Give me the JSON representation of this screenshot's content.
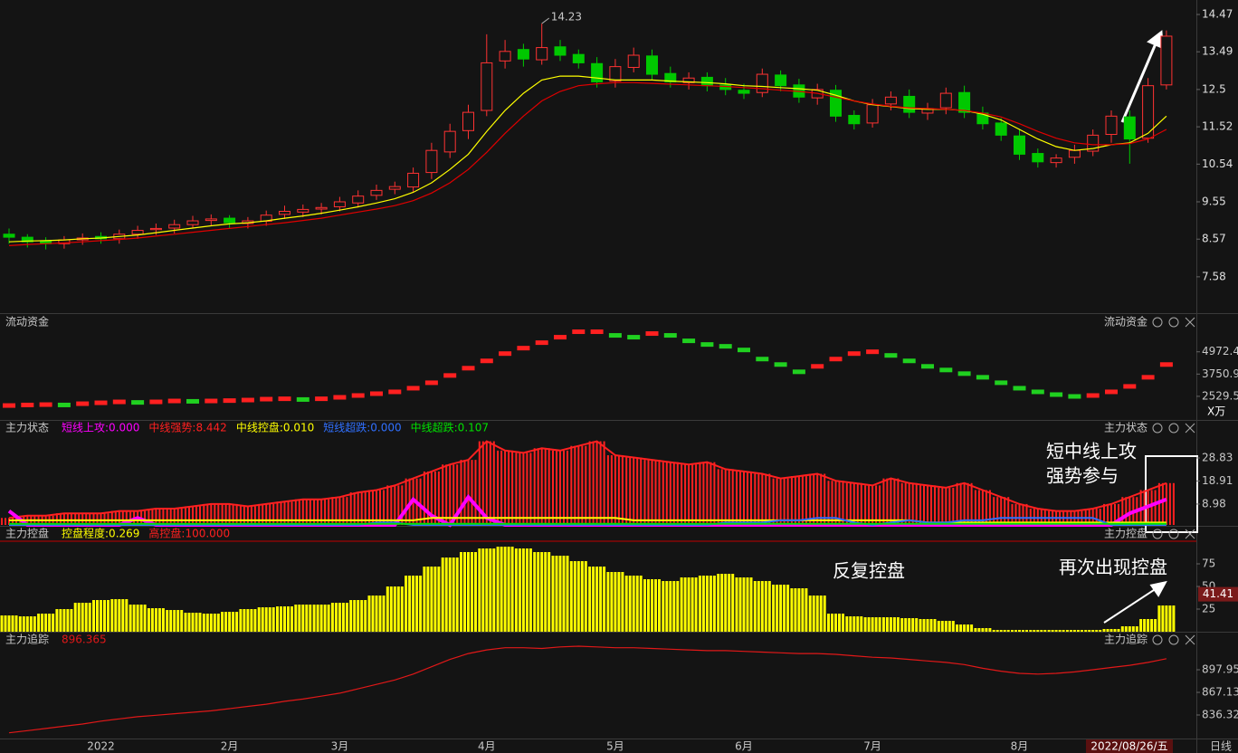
{
  "chart_data": [
    {
      "type": "candlestick",
      "categories": [
        null,
        null,
        null,
        null,
        null,
        "2022",
        null,
        null,
        null,
        null,
        null,
        null,
        "2月",
        null,
        null,
        null,
        null,
        null,
        "3月",
        null,
        null,
        null,
        null,
        null,
        null,
        null,
        "4月",
        null,
        null,
        null,
        null,
        null,
        null,
        "5月",
        null,
        null,
        null,
        null,
        null,
        null,
        "6月",
        null,
        null,
        null,
        null,
        null,
        null,
        "7月",
        null,
        null,
        null,
        null,
        null,
        null,
        null,
        "8月",
        null,
        null,
        null,
        null,
        null,
        null,
        null,
        null
      ],
      "open": [
        8.7,
        8.62,
        8.52,
        8.45,
        8.55,
        8.64,
        8.58,
        8.7,
        8.82,
        8.86,
        8.95,
        9.06,
        9.12,
        8.98,
        9.04,
        9.22,
        9.28,
        9.36,
        9.42,
        9.52,
        9.72,
        9.88,
        9.94,
        10.32,
        10.86,
        11.42,
        11.95,
        13.25,
        13.55,
        13.28,
        13.62,
        13.42,
        13.18,
        12.72,
        13.08,
        13.38,
        12.92,
        12.68,
        12.82,
        12.62,
        12.48,
        12.42,
        12.88,
        12.62,
        12.28,
        12.48,
        11.82,
        11.62,
        12.12,
        12.32,
        11.88,
        12.02,
        12.42,
        11.88,
        11.62,
        11.28,
        10.82,
        10.58,
        10.72,
        10.88,
        11.32,
        11.78,
        11.22,
        12.62
      ],
      "high": [
        8.85,
        8.7,
        8.62,
        8.65,
        8.72,
        8.75,
        8.82,
        8.92,
        8.98,
        9.08,
        9.18,
        9.22,
        9.2,
        9.15,
        9.32,
        9.45,
        9.48,
        9.52,
        9.68,
        9.85,
        10.0,
        10.08,
        10.45,
        11.1,
        11.6,
        12.1,
        13.95,
        13.8,
        13.7,
        14.23,
        13.8,
        13.55,
        13.35,
        13.3,
        13.6,
        13.55,
        13.1,
        12.95,
        12.95,
        12.8,
        12.65,
        13.05,
        13.0,
        12.78,
        12.65,
        12.62,
        11.95,
        12.25,
        12.45,
        12.5,
        12.15,
        12.55,
        12.6,
        12.05,
        11.75,
        11.45,
        10.95,
        10.8,
        11.05,
        11.45,
        11.95,
        11.95,
        12.8,
        14.05
      ],
      "low": [
        8.45,
        8.35,
        8.3,
        8.32,
        8.42,
        8.45,
        8.45,
        8.58,
        8.68,
        8.72,
        8.85,
        8.92,
        8.85,
        8.85,
        8.92,
        9.1,
        9.15,
        9.22,
        9.3,
        9.4,
        9.6,
        9.75,
        9.8,
        10.15,
        10.7,
        11.2,
        11.8,
        13.05,
        13.1,
        13.15,
        13.25,
        13.05,
        12.55,
        12.55,
        12.95,
        12.75,
        12.55,
        12.5,
        12.45,
        12.35,
        12.25,
        12.3,
        12.45,
        12.15,
        12.1,
        11.65,
        11.45,
        11.5,
        11.95,
        11.75,
        11.7,
        11.85,
        11.75,
        11.45,
        11.15,
        10.65,
        10.45,
        10.45,
        10.55,
        10.75,
        11.1,
        10.55,
        11.1,
        12.5
      ],
      "close": [
        8.62,
        8.5,
        8.45,
        8.55,
        8.6,
        8.58,
        8.7,
        8.8,
        8.85,
        8.95,
        9.05,
        9.1,
        9.0,
        9.05,
        9.2,
        9.3,
        9.35,
        9.4,
        9.55,
        9.7,
        9.85,
        9.95,
        10.3,
        10.9,
        11.4,
        11.9,
        13.2,
        13.5,
        13.3,
        13.6,
        13.4,
        13.2,
        12.7,
        13.1,
        13.4,
        12.9,
        12.7,
        12.8,
        12.6,
        12.5,
        12.4,
        12.9,
        12.6,
        12.3,
        12.5,
        11.8,
        11.6,
        12.1,
        12.3,
        11.9,
        12.0,
        12.4,
        11.9,
        11.6,
        11.3,
        10.8,
        10.6,
        10.7,
        10.9,
        11.3,
        11.8,
        11.2,
        12.6,
        13.9
      ],
      "up_color": "#ff3232",
      "down_color": "#00c800",
      "ma_lines": [
        {
          "color": "#ffff00",
          "values": [
            8.5,
            8.52,
            8.53,
            8.55,
            8.58,
            8.6,
            8.64,
            8.68,
            8.74,
            8.8,
            8.86,
            8.92,
            8.97,
            9.0,
            9.05,
            9.12,
            9.18,
            9.25,
            9.33,
            9.42,
            9.52,
            9.63,
            9.8,
            10.05,
            10.4,
            10.8,
            11.4,
            11.95,
            12.4,
            12.75,
            12.85,
            12.85,
            12.8,
            12.75,
            12.75,
            12.75,
            12.72,
            12.7,
            12.68,
            12.65,
            12.6,
            12.58,
            12.55,
            12.52,
            12.48,
            12.35,
            12.2,
            12.1,
            12.05,
            12.0,
            11.98,
            11.98,
            11.95,
            11.85,
            11.7,
            11.45,
            11.2,
            11.0,
            10.9,
            10.95,
            11.05,
            11.1,
            11.35,
            11.8
          ]
        },
        {
          "color": "#e00000",
          "values": [
            8.4,
            8.43,
            8.45,
            8.47,
            8.5,
            8.53,
            8.56,
            8.6,
            8.65,
            8.7,
            8.75,
            8.8,
            8.85,
            8.9,
            8.95,
            9.0,
            9.06,
            9.12,
            9.2,
            9.28,
            9.36,
            9.45,
            9.58,
            9.78,
            10.05,
            10.4,
            10.85,
            11.35,
            11.8,
            12.2,
            12.45,
            12.6,
            12.65,
            12.68,
            12.68,
            12.66,
            12.64,
            12.62,
            12.6,
            12.58,
            12.55,
            12.52,
            12.48,
            12.45,
            12.4,
            12.3,
            12.2,
            12.12,
            12.06,
            12.02,
            12.0,
            11.98,
            11.95,
            11.88,
            11.78,
            11.6,
            11.4,
            11.22,
            11.1,
            11.05,
            11.05,
            11.08,
            11.2,
            11.45
          ]
        }
      ],
      "max_label": "14.23",
      "ylim": [
        6.65,
        14.85
      ],
      "yticks": [
        14.47,
        13.49,
        12.5,
        11.52,
        10.54,
        9.55,
        8.57,
        7.58
      ],
      "date_label": "2022/08/26/五",
      "period_label": "日线"
    },
    {
      "type": "dot",
      "title": "流动资金",
      "unit": "X万",
      "up_color": "#ff2020",
      "down_color": "#20d020",
      "values": [
        2050,
        2080,
        2100,
        2080,
        2150,
        2200,
        2250,
        2220,
        2250,
        2300,
        2280,
        2300,
        2320,
        2350,
        2400,
        2420,
        2380,
        2420,
        2500,
        2600,
        2700,
        2800,
        3000,
        3300,
        3700,
        4100,
        4500,
        4900,
        5200,
        5500,
        5800,
        6100,
        6100,
        5900,
        5800,
        6000,
        5900,
        5600,
        5400,
        5300,
        5100,
        4600,
        4300,
        3900,
        4200,
        4600,
        4900,
        5000,
        4800,
        4500,
        4200,
        4000,
        3800,
        3600,
        3300,
        3000,
        2800,
        2650,
        2550,
        2600,
        2800,
        3100,
        3600,
        4300
      ],
      "ylim": [
        1283,
        6996
      ],
      "yticks": [
        4972.45,
        3750.98,
        2529.5
      ]
    },
    {
      "type": "bar-line",
      "title": "主力状态",
      "series": [
        {
          "name": "短线上攻:0.000",
          "color": "#ff00ff",
          "style": "line",
          "values": [
            6,
            0,
            0,
            0,
            0,
            0,
            0,
            3,
            0,
            0,
            0,
            0,
            0,
            0,
            0,
            0,
            0,
            0,
            0,
            0,
            0,
            0,
            11,
            4,
            0,
            12,
            3,
            0,
            0,
            0,
            0,
            0,
            0,
            0,
            0,
            0,
            0,
            0,
            0,
            0,
            0,
            0,
            0,
            0,
            0,
            0,
            0,
            0,
            0,
            0,
            0,
            0,
            0,
            0,
            0,
            0,
            0,
            0,
            0,
            0,
            0,
            5,
            8,
            11
          ]
        },
        {
          "name": "中线强势:8.442",
          "color": "#ff2020",
          "style": "bar",
          "values": [
            3,
            4,
            4,
            5,
            5,
            5,
            6,
            6,
            7,
            7,
            8,
            9,
            9,
            8,
            9,
            10,
            11,
            11,
            12,
            14,
            15,
            17,
            20,
            23,
            26,
            28,
            36,
            32,
            31,
            33,
            32,
            34,
            36,
            30,
            29,
            28,
            27,
            26,
            27,
            24,
            23,
            22,
            20,
            21,
            22,
            19,
            18,
            17,
            20,
            18,
            17,
            16,
            18,
            15,
            12,
            9,
            7,
            6,
            6,
            7,
            9,
            12,
            15,
            18
          ]
        },
        {
          "name": "中线控盘:0.010",
          "color": "#ffff00",
          "style": "line",
          "values": [
            2,
            2,
            2,
            2,
            2,
            2,
            2,
            2,
            2,
            2,
            2,
            2,
            2,
            2,
            2,
            2,
            2,
            2,
            2,
            2,
            2,
            2,
            2,
            3,
            3,
            3,
            3,
            3,
            3,
            3,
            3,
            3,
            3,
            3,
            2,
            2,
            2,
            2,
            2,
            2,
            2,
            2,
            2,
            2,
            2,
            2,
            2,
            2,
            2,
            2,
            1,
            1,
            1,
            1,
            1,
            1,
            1,
            1,
            1,
            1,
            1,
            1,
            1,
            1
          ]
        },
        {
          "name": "短线超跌:0.000",
          "color": "#3070ff",
          "style": "line",
          "values": [
            0,
            0,
            0,
            0,
            0,
            0,
            0,
            0,
            0,
            0,
            0,
            0,
            0,
            0,
            0,
            0,
            0,
            0,
            0,
            0,
            1,
            1,
            0,
            0,
            0,
            0,
            0,
            0,
            0,
            0,
            0,
            0,
            0,
            0,
            0,
            0,
            0,
            0,
            0,
            1,
            1,
            1,
            2,
            2,
            3,
            3,
            1,
            0,
            1,
            2,
            1,
            1,
            2,
            2,
            3,
            3,
            3,
            3,
            3,
            3,
            0,
            0,
            0,
            0
          ]
        },
        {
          "name": "中线超跌:0.107",
          "color": "#00e000",
          "style": "line",
          "values": [
            0.5,
            0.5,
            0.5,
            0.5,
            0.5,
            0.5,
            0.5,
            0.5,
            0.5,
            0.5,
            0.5,
            0.5,
            0.5,
            0.5,
            0.5,
            0.5,
            0.5,
            0.5,
            0.5,
            0.5,
            0.5,
            0.5,
            0.5,
            0.5,
            0.5,
            0.5,
            0.5,
            0.5,
            0.5,
            0.5,
            0.5,
            0.5,
            0.5,
            0.5,
            0.5,
            0.5,
            0.5,
            0.5,
            0.5,
            0.5,
            0.5,
            0.5,
            0.5,
            0.5,
            0.5,
            0.5,
            0.5,
            0.5,
            0.5,
            0.5,
            0.5,
            0.5,
            0.5,
            0.5,
            0.5,
            0.5,
            0.5,
            0.5,
            0.5,
            0.5,
            0.5,
            0.5,
            0.5,
            0.5
          ]
        }
      ],
      "annotations": [
        "短中线上攻",
        "强势参与"
      ],
      "ylim": [
        0,
        44.4
      ],
      "yticks": [
        28.83,
        18.91,
        8.98
      ]
    },
    {
      "type": "bar",
      "title": "主力控盘",
      "color": "#ffff00",
      "legend": [
        {
          "text": "控盘程度:0.269",
          "color": "#ffff00"
        },
        {
          "text": "高控盘:100.000",
          "color": "#ff2020"
        }
      ],
      "high_level": 100,
      "high_color": "#c00000",
      "marker": 41.41,
      "values": [
        18,
        17,
        20,
        25,
        32,
        35,
        36,
        30,
        26,
        24,
        21,
        20,
        22,
        25,
        27,
        28,
        30,
        30,
        32,
        35,
        40,
        50,
        62,
        72,
        82,
        88,
        92,
        94,
        92,
        88,
        84,
        78,
        72,
        66,
        62,
        58,
        56,
        60,
        62,
        64,
        60,
        56,
        52,
        48,
        40,
        20,
        17,
        16,
        16,
        15,
        14,
        12,
        8,
        4,
        2,
        2,
        2,
        2,
        2,
        2,
        3,
        6,
        14,
        29
      ],
      "annotations": [
        "反复控盘",
        "再次出现控盘"
      ],
      "ylim": [
        0,
        100
      ],
      "yticks": [
        75.0,
        50.0,
        25.0
      ]
    },
    {
      "type": "line",
      "title": "主力追踪",
      "color": "#e01818",
      "legend": [
        {
          "text": "896.365",
          "color": "#e01818"
        }
      ],
      "values": [
        812,
        815,
        818,
        821,
        824,
        828,
        831,
        834,
        836,
        838,
        840,
        842,
        845,
        848,
        851,
        855,
        858,
        862,
        866,
        872,
        878,
        884,
        892,
        902,
        912,
        920,
        925,
        928,
        928,
        927,
        929,
        930,
        929,
        928,
        928,
        927,
        926,
        925,
        924,
        924,
        923,
        922,
        921,
        920,
        920,
        919,
        917,
        915,
        914,
        912,
        910,
        908,
        905,
        900,
        896,
        893,
        892,
        893,
        895,
        898,
        901,
        904,
        908,
        913
      ],
      "ylim": [
        805.5,
        947.3
      ],
      "yticks": [
        897.95,
        867.13,
        836.32
      ]
    }
  ]
}
